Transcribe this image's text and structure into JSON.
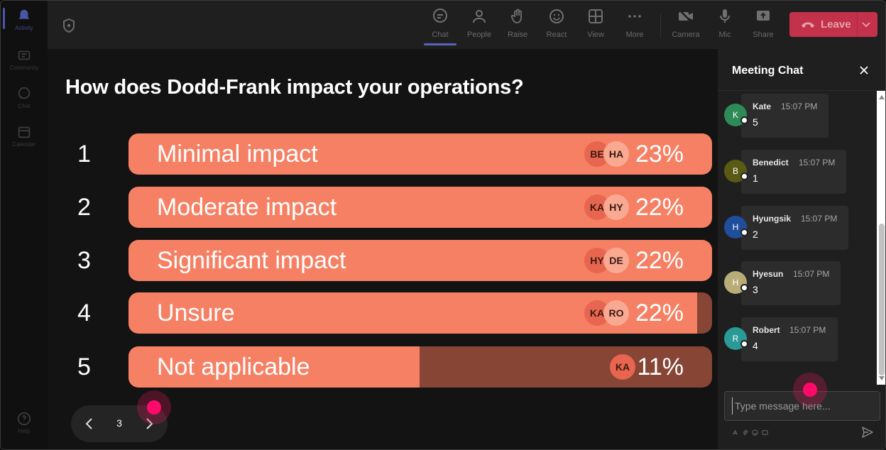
{
  "rail": {
    "items": [
      {
        "label": "Activity",
        "icon": "bell-icon",
        "active": true
      },
      {
        "label": "Community",
        "icon": "community-icon"
      },
      {
        "label": "Chat",
        "icon": "chat-icon"
      },
      {
        "label": "Calendar",
        "icon": "calendar-icon"
      }
    ],
    "help_label": "Help"
  },
  "toolbar": {
    "chat": "Chat",
    "people": "People",
    "raise": "Raise",
    "react": "React",
    "view": "View",
    "more": "More",
    "camera": "Camera",
    "mic": "Mic",
    "share": "Share",
    "leave": "Leave"
  },
  "poll": {
    "question": "How does Dodd-Frank impact your operations?",
    "options": [
      {
        "num": "1",
        "label": "Minimal impact",
        "pct_text": "23%",
        "fill": 1.0,
        "avatars": [
          "BE",
          "HA"
        ]
      },
      {
        "num": "2",
        "label": "Moderate impact",
        "pct_text": "22%",
        "fill": 1.0,
        "avatars": [
          "KA",
          "HY"
        ]
      },
      {
        "num": "3",
        "label": "Significant impact",
        "pct_text": "22%",
        "fill": 1.0,
        "avatars": [
          "HY",
          "DE"
        ]
      },
      {
        "num": "4",
        "label": "Unsure",
        "pct_text": "22%",
        "fill": 0.974,
        "avatars": [
          "KA",
          "RO"
        ]
      },
      {
        "num": "5",
        "label": "Not applicable",
        "pct_text": "11%",
        "fill": 0.499,
        "avatars": [
          "KA"
        ]
      }
    ]
  },
  "pager": {
    "page": "3"
  },
  "chat": {
    "title": "Meeting Chat",
    "messages": [
      {
        "initial": "K",
        "name": "Kate",
        "time": "15:07 PM",
        "body": "5",
        "color": "#2e8b57"
      },
      {
        "initial": "B",
        "name": "Benedict",
        "time": "15:07 PM",
        "body": "1",
        "color": "#5a5a14"
      },
      {
        "initial": "H",
        "name": "Hyungsik",
        "time": "15:07 PM",
        "body": "2",
        "color": "#1f4f9c"
      },
      {
        "initial": "H",
        "name": "Hyesun",
        "time": "15:07 PM",
        "body": "3",
        "color": "#b8ad78"
      },
      {
        "initial": "R",
        "name": "Robert",
        "time": "15:07 PM",
        "body": "4",
        "color": "#2a9a96"
      }
    ],
    "placeholder": "Type message here..."
  },
  "colors": {
    "bar_fill": "#f68064",
    "bar_track": "#874536",
    "leave": "#c4314b",
    "accent": "#5b63b8"
  }
}
